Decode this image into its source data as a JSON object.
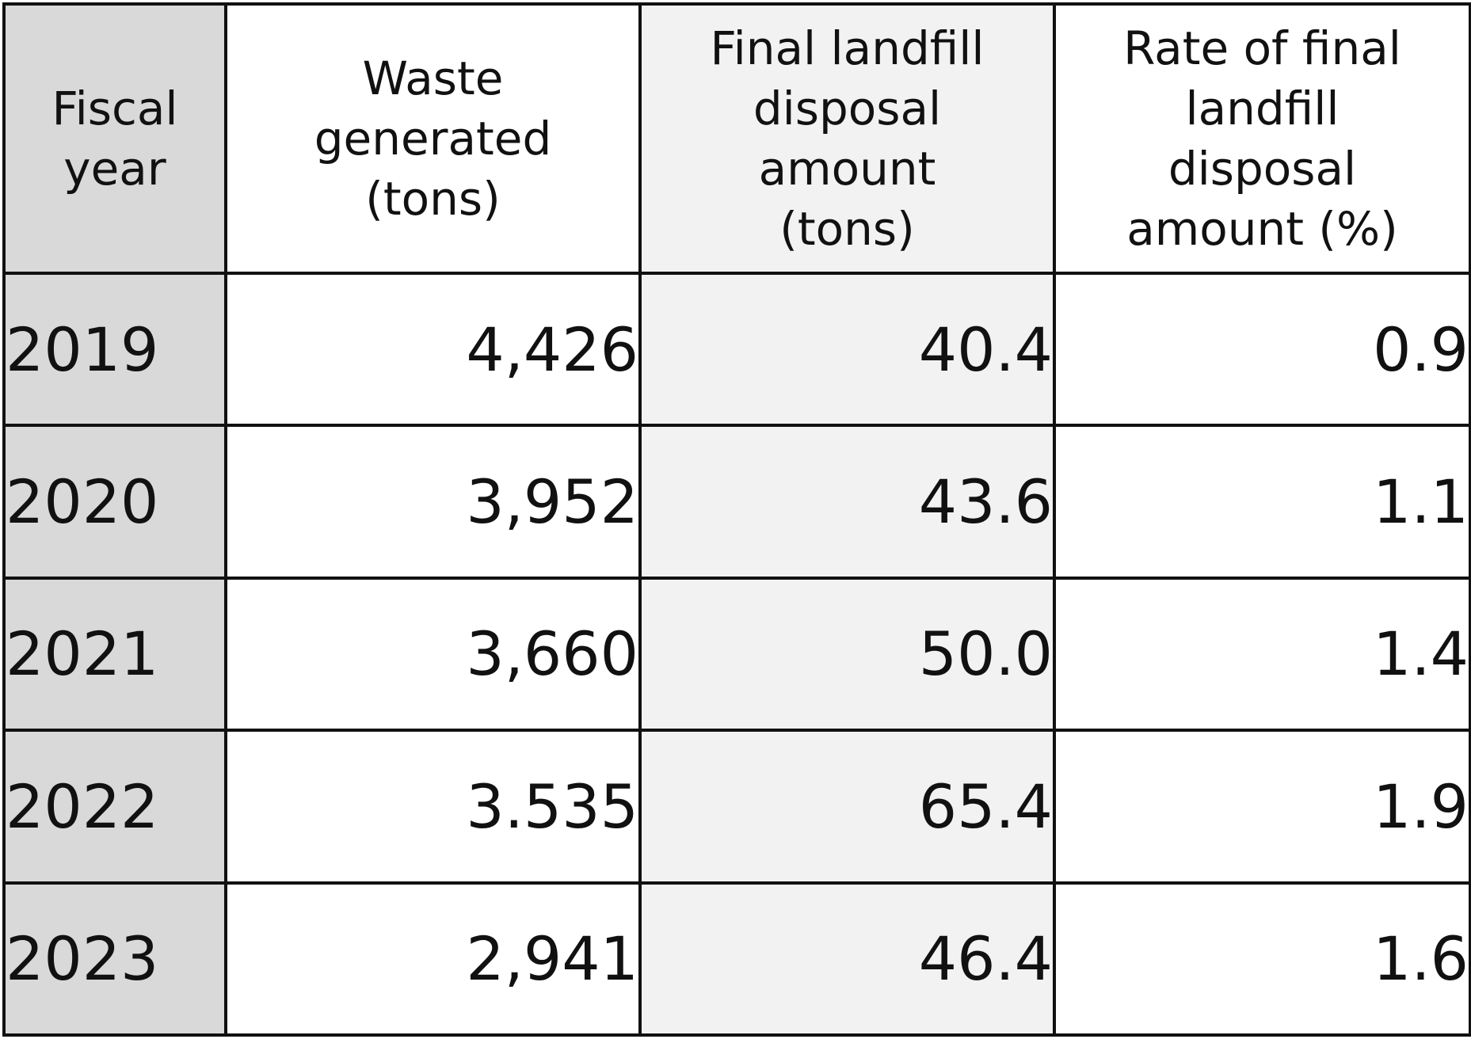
{
  "chart_data": {
    "type": "table",
    "columns": [
      "Fiscal\nyear",
      "Waste\ngenerated\n(tons)",
      "Final landfill\ndisposal\namount\n(tons)",
      "Rate of final\nlandfill\ndisposal\namount (%)"
    ],
    "rows": [
      [
        "2019",
        "4,426",
        "40.4",
        "0.9"
      ],
      [
        "2020",
        "3,952",
        "43.6",
        "1.1"
      ],
      [
        "2021",
        "3,660",
        "50.0",
        "1.4"
      ],
      [
        "2022",
        "3.535",
        "65.4",
        "1.9"
      ],
      [
        "2023",
        "2,941",
        "46.4",
        "1.6"
      ]
    ],
    "column_shading": [
      "#d9d9d9",
      "#ffffff",
      "#f2f2f2",
      "#ffffff"
    ]
  }
}
